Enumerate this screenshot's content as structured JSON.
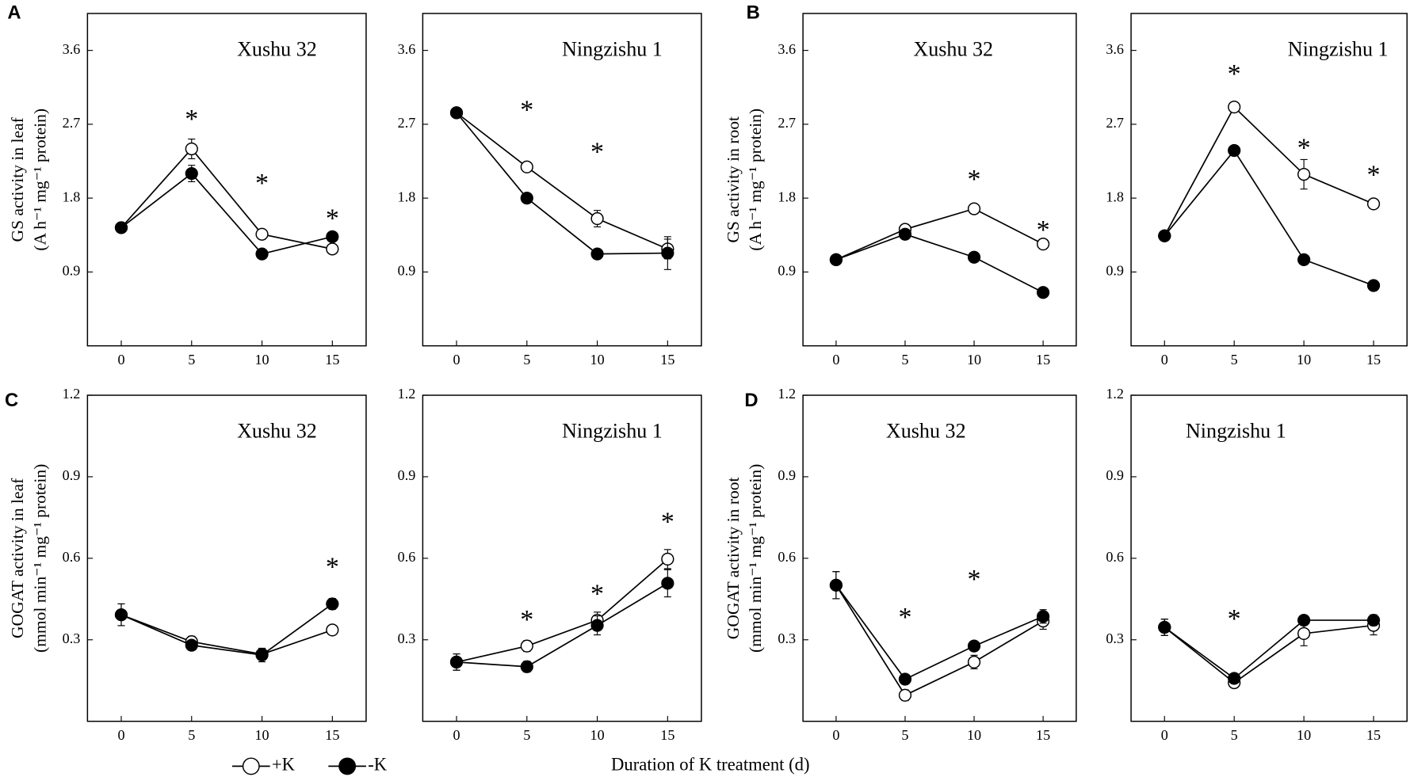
{
  "xlabel": "Duration of K treatment (d)",
  "chart_data": [
    {
      "type": "line",
      "panel": "A",
      "title": "Xushu 32",
      "ylabel": [
        "GS activity in leaf",
        "(A h⁻¹ mg⁻¹ protein)"
      ],
      "x": [
        0,
        5,
        10,
        15
      ],
      "xlim": [
        -2.4,
        17.4
      ],
      "xticks": [
        0,
        5,
        10,
        15
      ],
      "ylim": [
        0,
        4.05
      ],
      "yticks": [
        0.9,
        1.8,
        2.7,
        3.6
      ],
      "series": [
        {
          "name": "+K",
          "color": "#000000",
          "marker_fill": "#ffffff",
          "values": [
            1.44,
            2.4,
            1.36,
            1.18
          ],
          "errors": [
            0.03,
            0.12,
            0.03,
            0.05
          ]
        },
        {
          "name": "-K",
          "color": "#000000",
          "marker_fill": "#000000",
          "values": [
            1.44,
            2.1,
            1.12,
            1.33
          ],
          "errors": [
            0.03,
            0.1,
            0.03,
            0.04
          ]
        }
      ],
      "annotations": [
        {
          "text": "*",
          "x": 5,
          "y": 2.8
        },
        {
          "text": "*",
          "x": 10,
          "y": 2.02
        },
        {
          "text": "*",
          "x": 15,
          "y": 1.59
        }
      ]
    },
    {
      "type": "line",
      "title": "Ningzishu 1",
      "x": [
        0,
        5,
        10,
        15
      ],
      "xlim": [
        -2.4,
        17.4
      ],
      "xticks": [
        0,
        5,
        10,
        15
      ],
      "ylim": [
        0,
        4.05
      ],
      "yticks": [
        0.9,
        1.8,
        2.7,
        3.6
      ],
      "series": [
        {
          "name": "+K",
          "color": "#000000",
          "marker_fill": "#ffffff",
          "values": [
            2.84,
            2.18,
            1.55,
            1.18
          ],
          "errors": [
            0.03,
            0.04,
            0.1,
            0.12
          ]
        },
        {
          "name": "-K",
          "color": "#000000",
          "marker_fill": "#000000",
          "values": [
            2.84,
            1.8,
            1.12,
            1.13
          ],
          "errors": [
            0.03,
            0.03,
            0.03,
            0.2
          ]
        }
      ],
      "annotations": [
        {
          "text": "*",
          "x": 5,
          "y": 2.91
        },
        {
          "text": "*",
          "x": 10,
          "y": 2.4
        }
      ]
    },
    {
      "type": "line",
      "panel": "B",
      "title": "Xushu 32",
      "ylabel": [
        "GS activity in root",
        "(A h⁻¹ mg⁻¹ protein)"
      ],
      "x": [
        0,
        5,
        10,
        15
      ],
      "xlim": [
        -2.4,
        17.4
      ],
      "xticks": [
        0,
        5,
        10,
        15
      ],
      "ylim": [
        0,
        4.05
      ],
      "yticks": [
        0.9,
        1.8,
        2.7,
        3.6
      ],
      "series": [
        {
          "name": "+K",
          "color": "#000000",
          "marker_fill": "#ffffff",
          "values": [
            1.05,
            1.42,
            1.67,
            1.24
          ],
          "errors": [
            0.03,
            0.05,
            0.04,
            0.06
          ]
        },
        {
          "name": "-K",
          "color": "#000000",
          "marker_fill": "#000000",
          "values": [
            1.05,
            1.36,
            1.08,
            0.65
          ],
          "errors": [
            0.03,
            0.05,
            0.03,
            0.03
          ]
        }
      ],
      "annotations": [
        {
          "text": "*",
          "x": 10,
          "y": 2.07
        },
        {
          "text": "*",
          "x": 15,
          "y": 1.45
        }
      ]
    },
    {
      "type": "line",
      "title": "Ningzishu 1",
      "x": [
        0,
        5,
        10,
        15
      ],
      "xlim": [
        -2.4,
        17.4
      ],
      "xticks": [
        0,
        5,
        10,
        15
      ],
      "ylim": [
        0,
        4.05
      ],
      "yticks": [
        0.9,
        1.8,
        2.7,
        3.6
      ],
      "series": [
        {
          "name": "+K",
          "color": "#000000",
          "marker_fill": "#ffffff",
          "values": [
            1.34,
            2.91,
            2.09,
            1.73
          ],
          "errors": [
            0.05,
            0.03,
            0.18,
            0.04
          ]
        },
        {
          "name": "-K",
          "color": "#000000",
          "marker_fill": "#000000",
          "values": [
            1.34,
            2.38,
            1.05,
            0.735
          ],
          "errors": [
            0.05,
            0.04,
            0.03,
            0.06
          ]
        }
      ],
      "annotations": [
        {
          "text": "*",
          "x": 5,
          "y": 3.35
        },
        {
          "text": "*",
          "x": 10,
          "y": 2.45
        },
        {
          "text": "*",
          "x": 15,
          "y": 2.12
        }
      ]
    },
    {
      "type": "line",
      "panel": "C",
      "title": "Xushu 32",
      "ylabel": [
        "GOGAT activity in leaf",
        "(mmol min⁻¹ mg⁻¹ protein)"
      ],
      "x": [
        0,
        5,
        10,
        15
      ],
      "xlim": [
        -2.4,
        17.4
      ],
      "xticks": [
        0,
        5,
        10,
        15
      ],
      "ylim": [
        0,
        1.2
      ],
      "yticks": [
        0.3,
        0.6,
        0.9,
        1.2
      ],
      "series": [
        {
          "name": "+K",
          "color": "#000000",
          "marker_fill": "#ffffff",
          "values": [
            0.392,
            0.293,
            0.247,
            0.336
          ],
          "errors": [
            0.04,
            0.02,
            0.02,
            0.015
          ]
        },
        {
          "name": "-K",
          "color": "#000000",
          "marker_fill": "#000000",
          "values": [
            0.392,
            0.28,
            0.244,
            0.432
          ],
          "errors": [
            0.04,
            0.015,
            0.025,
            0.02
          ]
        }
      ],
      "annotations": [
        {
          "text": "*",
          "x": 15,
          "y": 0.58
        }
      ]
    },
    {
      "type": "line",
      "title": "Ningzishu 1",
      "x": [
        0,
        5,
        10,
        15
      ],
      "xlim": [
        -2.4,
        17.4
      ],
      "xticks": [
        0,
        5,
        10,
        15
      ],
      "ylim": [
        0,
        1.2
      ],
      "yticks": [
        0.3,
        0.6,
        0.9,
        1.2
      ],
      "series": [
        {
          "name": "+K",
          "color": "#000000",
          "marker_fill": "#ffffff",
          "values": [
            0.218,
            0.277,
            0.372,
            0.597
          ],
          "errors": [
            0.03,
            0.02,
            0.03,
            0.035
          ]
        },
        {
          "name": "-K",
          "color": "#000000",
          "marker_fill": "#000000",
          "values": [
            0.218,
            0.201,
            0.353,
            0.508
          ],
          "errors": [
            0.03,
            0.02,
            0.035,
            0.05
          ]
        }
      ],
      "annotations": [
        {
          "text": "*",
          "x": 5,
          "y": 0.386
        },
        {
          "text": "*",
          "x": 10,
          "y": 0.48
        },
        {
          "text": "*",
          "x": 15,
          "y": 0.745
        }
      ]
    },
    {
      "type": "line",
      "panel": "D",
      "title": "Xushu 32",
      "ylabel": [
        "GOGAT activity in root",
        "(mmol min⁻¹ mg⁻¹ protein)"
      ],
      "x": [
        0,
        5,
        10,
        15
      ],
      "xlim": [
        -2.4,
        17.4
      ],
      "xticks": [
        0,
        5,
        10,
        15
      ],
      "ylim": [
        0,
        1.2
      ],
      "yticks": [
        0.3,
        0.6,
        0.9,
        1.2
      ],
      "series": [
        {
          "name": "+K",
          "color": "#000000",
          "marker_fill": "#ffffff",
          "values": [
            0.501,
            0.096,
            0.218,
            0.369
          ],
          "errors": [
            0.05,
            0.02,
            0.025,
            0.03
          ]
        },
        {
          "name": "-K",
          "color": "#000000",
          "marker_fill": "#000000",
          "values": [
            0.501,
            0.155,
            0.277,
            0.386
          ],
          "errors": [
            0.05,
            0.015,
            0.015,
            0.025
          ]
        }
      ],
      "annotations": [
        {
          "text": "*",
          "x": 5,
          "y": 0.395
        },
        {
          "text": "*",
          "x": 10,
          "y": 0.534
        }
      ]
    },
    {
      "type": "line",
      "title": "Ningzishu 1",
      "x": [
        0,
        5,
        10,
        15
      ],
      "xlim": [
        -2.4,
        17.4
      ],
      "xticks": [
        0,
        5,
        10,
        15
      ],
      "ylim": [
        0,
        1.2
      ],
      "yticks": [
        0.3,
        0.6,
        0.9,
        1.2
      ],
      "series": [
        {
          "name": "+K",
          "color": "#000000",
          "marker_fill": "#ffffff",
          "values": [
            0.346,
            0.142,
            0.323,
            0.353
          ],
          "errors": [
            0.03,
            0.015,
            0.045,
            0.035
          ]
        },
        {
          "name": "-K",
          "color": "#000000",
          "marker_fill": "#000000",
          "values": [
            0.346,
            0.158,
            0.372,
            0.372
          ],
          "errors": [
            0.03,
            0.015,
            0.015,
            0.02
          ]
        }
      ],
      "annotations": [
        {
          "text": "*",
          "x": 5,
          "y": 0.389
        }
      ]
    }
  ]
}
